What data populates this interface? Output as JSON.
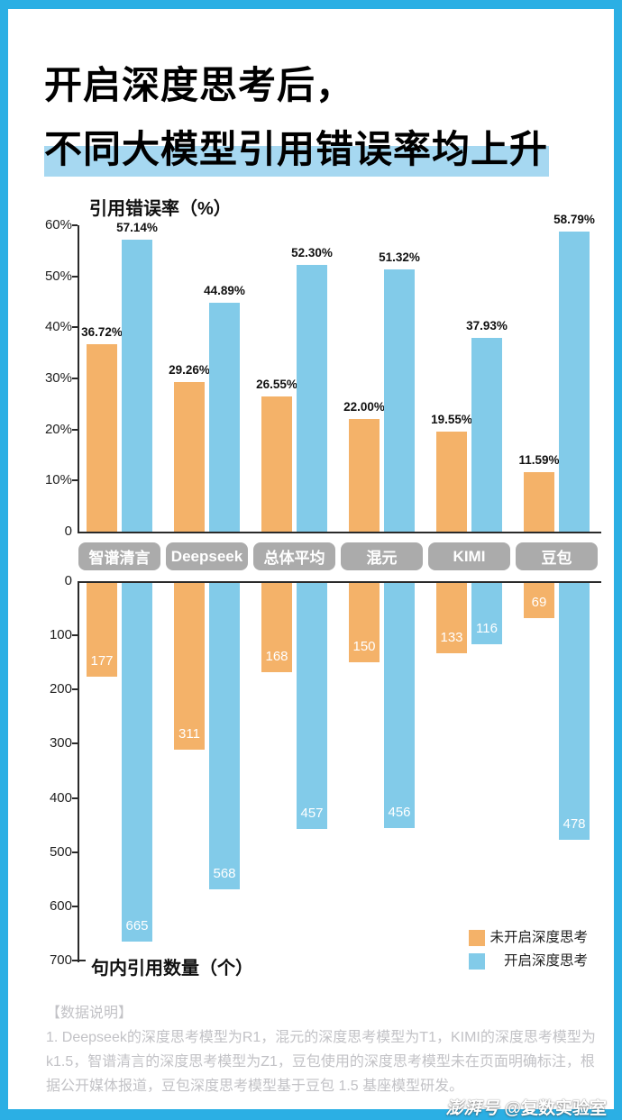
{
  "theme": {
    "frame_blue": "#2BAFE4",
    "title_highlight": "#A6D8F1",
    "bar_orange": "#F4B269",
    "bar_blue": "#82CBE9",
    "pill_gray": "#ABABAB",
    "footnote_gray": "#C2C2C6"
  },
  "header": {
    "title_line1": "开启深度思考后，",
    "title_line2": "不同大模型引用错误率均上升"
  },
  "legend": {
    "items": [
      {
        "label": "未开启深度思考",
        "color": "#F4B269"
      },
      {
        "label": "开启深度思考",
        "color": "#82CBE9"
      }
    ]
  },
  "footnote": {
    "heading": "【数据说明】",
    "body": "1. Deepseek的深度思考模型为R1，混元的深度思考模型为T1，KIMI的深度思考模型为k1.5，智谱清言的深度思考模型为Z1，豆包使用的深度思考模型未在页面明确标注，根据公开媒体报道，豆包深度思考模型基于豆包 1.5 基座模型研发。"
  },
  "watermark": {
    "logo": "澎湃号",
    "handle": "@复数实验室"
  },
  "chart_data": [
    {
      "type": "bar",
      "title": "引用错误率（%）",
      "categories": [
        "智谱清言",
        "Deepseek",
        "总体平均",
        "混元",
        "KIMI",
        "豆包"
      ],
      "series": [
        {
          "name": "未开启深度思考",
          "values": [
            36.72,
            29.26,
            26.55,
            22.0,
            19.55,
            11.59
          ]
        },
        {
          "name": "开启深度思考",
          "values": [
            57.14,
            44.89,
            52.3,
            51.32,
            37.93,
            58.79
          ]
        }
      ],
      "ylim": [
        0,
        60
      ],
      "ytick_step": 10,
      "ytick_suffix": "%",
      "value_label_format": "percent2",
      "direction": "up",
      "grid": false,
      "legend_position": "none"
    },
    {
      "type": "bar",
      "title": "句内引用数量（个）",
      "categories": [
        "智谱清言",
        "Deepseek",
        "总体平均",
        "混元",
        "KIMI",
        "豆包"
      ],
      "series": [
        {
          "name": "未开启深度思考",
          "values": [
            177,
            311,
            168,
            150,
            133,
            69
          ]
        },
        {
          "name": "开启深度思考",
          "values": [
            665,
            568,
            457,
            456,
            116,
            478
          ]
        }
      ],
      "ylim": [
        0,
        700
      ],
      "ytick_step": 100,
      "ytick_suffix": "",
      "value_label_format": "int",
      "direction": "down",
      "grid": false,
      "legend_position": "bottom-right"
    }
  ]
}
